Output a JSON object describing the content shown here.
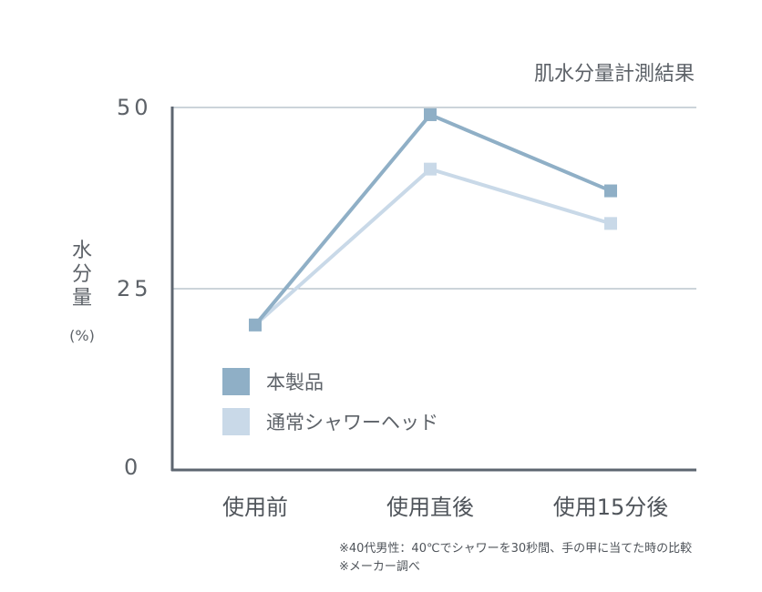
{
  "chart_data": {
    "type": "line",
    "title": "肌水分量計測結果",
    "ylabel": [
      "水",
      "分",
      "量"
    ],
    "yunit": "(%)",
    "categories": [
      "使用前",
      "使用直後",
      "使用15分後"
    ],
    "yticks": [
      "50",
      "25",
      "0"
    ],
    "ylim": [
      0,
      50
    ],
    "grid": true,
    "legend_position": "left-inside",
    "series": [
      {
        "name": "本製品",
        "values": [
          20,
          49,
          38.5
        ],
        "color": "#8fafc6"
      },
      {
        "name": "通常シャワーヘッド",
        "values": [
          20,
          41.5,
          34
        ],
        "color": "#c9d9e8"
      }
    ],
    "notes": [
      "※40代男性：40℃でシャワーを30秒間、手の甲に当てた時の比較",
      "※メーカー調べ"
    ]
  }
}
